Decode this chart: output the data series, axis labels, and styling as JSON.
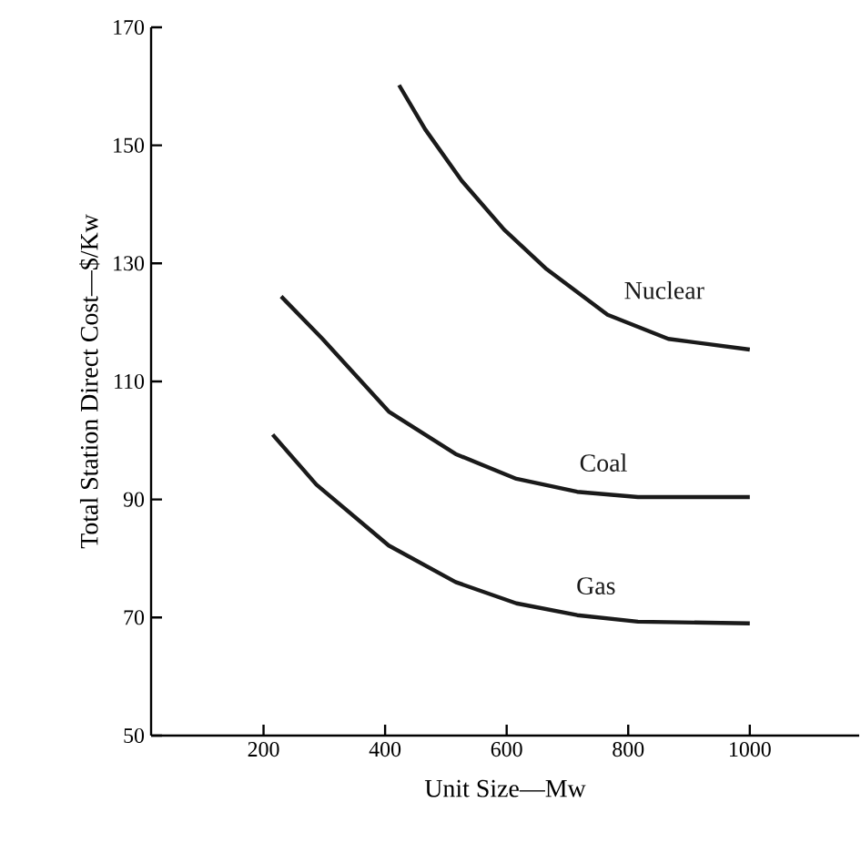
{
  "chart_data": {
    "type": "line",
    "xlabel": "Unit Size—Mw",
    "ylabel": "Total Station Direct Cost—$/Kw",
    "xlim": [
      15,
      1180
    ],
    "ylim": [
      50,
      170
    ],
    "xticks": [
      200,
      400,
      600,
      800,
      1000
    ],
    "yticks": [
      50,
      70,
      90,
      110,
      130,
      150,
      170
    ],
    "series": [
      {
        "name": "Nuclear",
        "color": "#1a1a1a",
        "x": [
          423,
          466,
          526,
          596,
          666,
          766,
          866,
          1000
        ],
        "values": [
          160.2,
          152.7,
          144,
          135.7,
          129,
          121.3,
          117.2,
          115.4
        ]
      },
      {
        "name": "Coal",
        "color": "#1a1a1a",
        "x": [
          229,
          297,
          406,
          516,
          616,
          716,
          816,
          1000
        ],
        "values": [
          124.4,
          117.2,
          104.9,
          97.7,
          93.5,
          91.3,
          90.4,
          90.4
        ]
      },
      {
        "name": "Gas",
        "color": "#1a1a1a",
        "x": [
          215,
          287,
          406,
          516,
          616,
          716,
          816,
          1000
        ],
        "values": [
          101,
          92.5,
          82.2,
          76,
          72.4,
          70.4,
          69.3,
          69.0
        ]
      }
    ]
  }
}
